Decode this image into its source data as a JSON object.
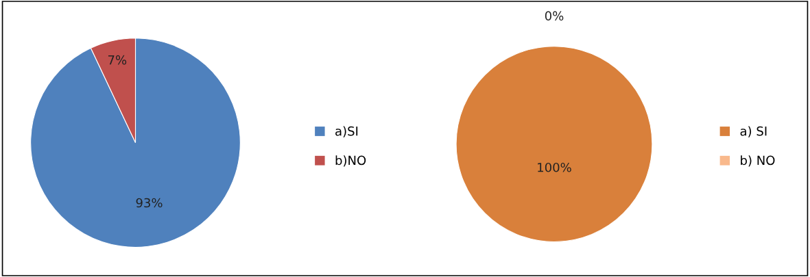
{
  "chart_data": [
    {
      "type": "pie",
      "categories": [
        "a)SI",
        "b)NO"
      ],
      "values": [
        93,
        7
      ],
      "colors": [
        "#4f81bd",
        "#c0504d"
      ],
      "value_labels": [
        "93%",
        "7%"
      ],
      "legend": "right"
    },
    {
      "type": "pie",
      "categories": [
        "a) SI",
        "b) NO"
      ],
      "values": [
        100,
        0
      ],
      "colors": [
        "#d9803b",
        "#f9b98c"
      ],
      "value_labels": [
        "100%",
        "0%"
      ],
      "legend": "right"
    }
  ]
}
